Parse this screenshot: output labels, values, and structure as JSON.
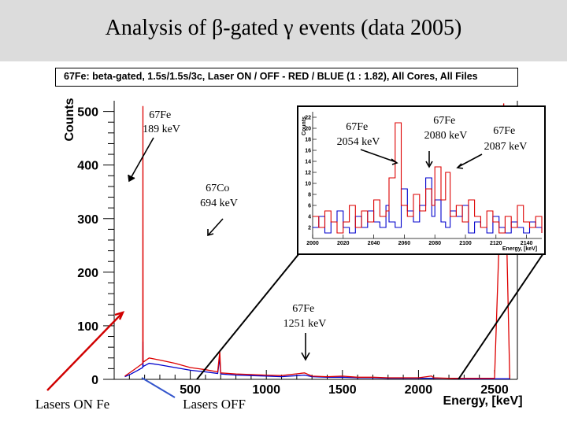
{
  "slide": {
    "title": "Analysis of β-gated γ events (data 2005)"
  },
  "chart_data": {
    "main": {
      "type": "line",
      "title": "67Fe: beta-gated, 1.5s/1.5s/3c, Laser ON / OFF - RED / BLUE (1 : 1.82), All Cores, All Files",
      "xlabel": "Energy, [keV]",
      "ylabel": "Counts",
      "xlim": [
        0,
        2650
      ],
      "ylim": [
        0,
        520
      ],
      "x_ticks": [
        "500",
        "1000",
        "1500",
        "2000",
        "2500"
      ],
      "y_ticks": [
        "0",
        "100",
        "200",
        "300",
        "400",
        "500"
      ],
      "series": [
        {
          "name": "Laser ON",
          "color": "#dd0000",
          "x": [
            70,
            110,
            150,
            188,
            189,
            190,
            230,
            300,
            400,
            500,
            600,
            680,
            694,
            700,
            800,
            900,
            1000,
            1100,
            1251,
            1300,
            1400,
            1500,
            1600,
            1700,
            1800,
            1900,
            2000,
            2054,
            2080,
            2087,
            2100,
            2200,
            2300,
            2400,
            2500,
            2560,
            2600
          ],
          "y": [
            6,
            14,
            22,
            30,
            510,
            32,
            40,
            36,
            30,
            22,
            18,
            14,
            52,
            12,
            10,
            9,
            8,
            7,
            12,
            6,
            5,
            6,
            4,
            4,
            3,
            3,
            3,
            5,
            6,
            6,
            3,
            2,
            2,
            2,
            2,
            515,
            2
          ]
        },
        {
          "name": "Laser OFF",
          "color": "#0000cc",
          "x": [
            70,
            110,
            150,
            188,
            189,
            190,
            230,
            300,
            400,
            500,
            600,
            680,
            694,
            700,
            800,
            900,
            1000,
            1100,
            1251,
            1300,
            1400,
            1500,
            1600,
            1700,
            1800,
            1900,
            2000,
            2100,
            2200,
            2300,
            2400,
            2500,
            2600
          ],
          "y": [
            5,
            10,
            16,
            22,
            70,
            24,
            30,
            27,
            22,
            17,
            14,
            11,
            40,
            10,
            8,
            7,
            6,
            5,
            8,
            5,
            4,
            4,
            3,
            3,
            2,
            2,
            2,
            2,
            2,
            1,
            1,
            1,
            1
          ]
        }
      ]
    },
    "inset": {
      "type": "line",
      "xlabel": "Energy, [keV]",
      "ylabel": "Counts",
      "xlim": [
        2000,
        2150
      ],
      "ylim": [
        0,
        23
      ],
      "x_ticks": [
        "2000",
        "2020",
        "2040",
        "2060",
        "2080",
        "2100",
        "2120",
        "2140"
      ],
      "y_ticks": [
        "2",
        "4",
        "6",
        "8",
        "10",
        "12",
        "14",
        "16",
        "18",
        "20",
        "22"
      ],
      "series": [
        {
          "name": "Laser ON",
          "color": "#dd0000",
          "x": [
            2000,
            2004,
            2008,
            2012,
            2016,
            2020,
            2024,
            2028,
            2032,
            2036,
            2040,
            2044,
            2048,
            2050,
            2054,
            2058,
            2062,
            2066,
            2070,
            2074,
            2078,
            2080,
            2084,
            2087,
            2090,
            2094,
            2098,
            2102,
            2106,
            2110,
            2114,
            2118,
            2122,
            2126,
            2130,
            2134,
            2138,
            2142,
            2146,
            2150
          ],
          "y": [
            4,
            2,
            5,
            3,
            1,
            3,
            6,
            2,
            5,
            3,
            7,
            4,
            5,
            11,
            21,
            6,
            4,
            8,
            5,
            9,
            6,
            13,
            7,
            12,
            4,
            6,
            3,
            7,
            4,
            2,
            5,
            3,
            1,
            4,
            2,
            6,
            3,
            2,
            4,
            1
          ]
        },
        {
          "name": "Laser OFF",
          "color": "#0000cc",
          "x": [
            2000,
            2004,
            2008,
            2012,
            2016,
            2020,
            2024,
            2028,
            2032,
            2036,
            2040,
            2044,
            2048,
            2050,
            2054,
            2058,
            2062,
            2066,
            2070,
            2074,
            2078,
            2080,
            2084,
            2087,
            2090,
            2094,
            2098,
            2102,
            2106,
            2110,
            2114,
            2118,
            2122,
            2126,
            2130,
            2134,
            2138,
            2142,
            2146,
            2150
          ],
          "y": [
            2,
            4,
            1,
            3,
            5,
            2,
            1,
            4,
            2,
            5,
            3,
            2,
            6,
            3,
            2,
            9,
            5,
            3,
            6,
            11,
            4,
            7,
            3,
            2,
            5,
            4,
            6,
            1,
            3,
            2,
            1,
            4,
            2,
            1,
            3,
            2,
            1,
            3,
            2,
            1
          ]
        }
      ]
    },
    "annotations": [
      {
        "lines": [
          "67Fe",
          "189 keV"
        ]
      },
      {
        "lines": [
          "67Fe",
          "2054 keV"
        ]
      },
      {
        "lines": [
          "67Fe",
          "2080 keV"
        ]
      },
      {
        "lines": [
          "67Fe",
          "2087 keV"
        ]
      },
      {
        "lines": [
          "67Co",
          "694 keV"
        ]
      },
      {
        "lines": [
          "67Fe",
          "1251 keV"
        ]
      },
      {
        "lines": [
          "Lasers ON Fe"
        ]
      },
      {
        "lines": [
          "Lasers OFF"
        ]
      }
    ]
  }
}
